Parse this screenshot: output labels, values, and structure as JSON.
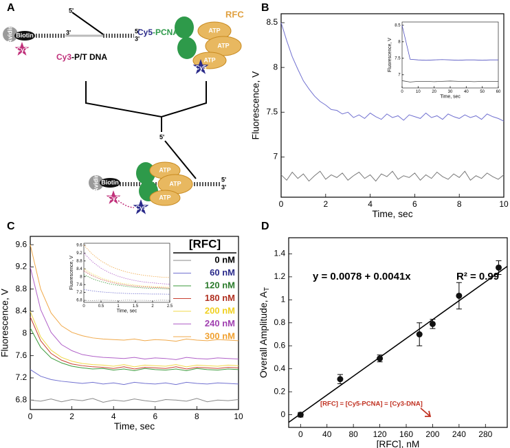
{
  "panels": [
    "A",
    "B",
    "C",
    "D"
  ],
  "diagram": {
    "labels": [
      "Avidin",
      "Biotin",
      "Cy3",
      "3'",
      "5'",
      "5'",
      "3'",
      "Cy3",
      "-P/T DNA",
      "RFC",
      "ATP",
      "ATP",
      "ATP",
      "Cy5",
      "Cy5",
      "-PCNA",
      "Avidin",
      "Biotin",
      "Cy3",
      "ATP",
      "ATP",
      "ATP",
      "Cy5",
      "5'",
      "5'",
      "3'"
    ]
  },
  "chart_data": [
    {
      "type": "line",
      "xlabel": "Time, sec",
      "ylabel": "Fluorescence, V",
      "xlim": [
        0,
        10
      ],
      "ylim": [
        6.55,
        8.6
      ],
      "xticks": [
        0,
        2,
        4,
        6,
        8,
        10
      ],
      "yticks": [
        7,
        7.5,
        8,
        8.5
      ],
      "x": [
        0,
        0.25,
        0.5,
        0.75,
        1,
        1.25,
        1.5,
        1.75,
        2,
        2.25,
        2.5,
        2.75,
        3,
        3.25,
        3.5,
        3.75,
        4,
        4.25,
        4.5,
        4.75,
        5,
        5.25,
        5.5,
        5.75,
        6,
        6.25,
        6.5,
        6.75,
        7,
        7.25,
        7.5,
        7.75,
        8,
        8.25,
        8.5,
        8.75,
        9,
        9.25,
        9.5,
        9.75,
        10
      ],
      "series": [
        {
          "color": "#7070d0",
          "values": [
            8.5,
            8.3,
            8.12,
            7.98,
            7.85,
            7.76,
            7.68,
            7.62,
            7.58,
            7.53,
            7.52,
            7.48,
            7.5,
            7.44,
            7.47,
            7.43,
            7.49,
            7.45,
            7.42,
            7.48,
            7.44,
            7.46,
            7.41,
            7.47,
            7.45,
            7.43,
            7.49,
            7.44,
            7.46,
            7.42,
            7.48,
            7.45,
            7.43,
            7.47,
            7.44,
            7.46,
            7.42,
            7.48,
            7.45,
            7.43,
            7.4
          ]
        },
        {
          "color": "#777777",
          "values": [
            6.8,
            6.74,
            6.83,
            6.76,
            6.81,
            6.73,
            6.79,
            6.84,
            6.75,
            6.8,
            6.77,
            6.82,
            6.74,
            6.79,
            6.83,
            6.76,
            6.8,
            6.73,
            6.81,
            6.78,
            6.84,
            6.75,
            6.79,
            6.77,
            6.82,
            6.74,
            6.8,
            6.76,
            6.83,
            6.78,
            6.75,
            6.81,
            6.77,
            6.84,
            6.74,
            6.79,
            6.76,
            6.82,
            6.78,
            6.75,
            6.8
          ]
        }
      ],
      "inset": {
        "type": "line",
        "xlabel": "Time, sec",
        "ylabel": "Fluorescence, V",
        "xlim": [
          0,
          60
        ],
        "ylim": [
          6.6,
          8.6
        ],
        "xticks": [
          0,
          10,
          20,
          30,
          40,
          50,
          60
        ],
        "yticks": [
          7,
          7.5,
          8,
          8.5
        ],
        "x": [
          0,
          5,
          10,
          15,
          20,
          25,
          30,
          35,
          40,
          45,
          50,
          55,
          60
        ],
        "series": [
          {
            "color": "#5050c0",
            "values": [
              8.5,
              7.47,
              7.45,
              7.44,
              7.45,
              7.46,
              7.45,
              7.44,
              7.45,
              7.45,
              7.44,
              7.45,
              7.45
            ]
          },
          {
            "color": "#444444",
            "values": [
              6.82,
              6.78,
              6.8,
              6.8,
              6.79,
              6.8,
              6.81,
              6.8,
              6.8,
              6.79,
              6.8,
              6.8,
              6.8
            ]
          }
        ]
      }
    },
    {
      "type": "line",
      "xlabel": "Time, sec",
      "ylabel": "Fluorescence, V",
      "legend_title": "[RFC]",
      "xlim": [
        0,
        10
      ],
      "ylim": [
        6.63,
        9.75
      ],
      "xticks": [
        0,
        2,
        4,
        6,
        8,
        10
      ],
      "yticks": [
        6.8,
        7.2,
        7.6,
        8,
        8.4,
        8.8,
        9.2,
        9.6
      ],
      "x": [
        0,
        0.5,
        1,
        1.5,
        2,
        2.5,
        3,
        3.5,
        4,
        4.5,
        5,
        5.5,
        6,
        6.5,
        7,
        7.5,
        8,
        8.5,
        9,
        9.5,
        10
      ],
      "series": [
        {
          "name": "0 nM",
          "color": "#888888",
          "legend_color": "#000000",
          "values": [
            6.8,
            6.78,
            6.82,
            6.77,
            6.81,
            6.79,
            6.83,
            6.76,
            6.8,
            6.78,
            6.82,
            6.79,
            6.77,
            6.81,
            6.8,
            6.78,
            6.83,
            6.77,
            6.8,
            6.79,
            6.81
          ]
        },
        {
          "name": "60 nM",
          "color": "#7070d0",
          "legend_color": "#2a2a8a",
          "values": [
            7.35,
            7.23,
            7.17,
            7.14,
            7.12,
            7.1,
            7.12,
            7.09,
            7.11,
            7.08,
            7.12,
            7.1,
            7.09,
            7.11,
            7.08,
            7.12,
            7.1,
            7.09,
            7.11,
            7.1,
            7.09
          ]
        },
        {
          "name": "120 nM",
          "color": "#3a9a3a",
          "legend_color": "#2a7a2a",
          "values": [
            8.1,
            7.75,
            7.56,
            7.47,
            7.41,
            7.38,
            7.36,
            7.37,
            7.34,
            7.36,
            7.33,
            7.37,
            7.35,
            7.34,
            7.36,
            7.33,
            7.37,
            7.35,
            7.34,
            7.36,
            7.35
          ]
        },
        {
          "name": "180 nM",
          "color": "#c84030",
          "legend_color": "#b03020",
          "values": [
            8.3,
            7.87,
            7.64,
            7.52,
            7.45,
            7.42,
            7.4,
            7.39,
            7.37,
            7.4,
            7.36,
            7.39,
            7.38,
            7.37,
            7.4,
            7.36,
            7.39,
            7.38,
            7.37,
            7.39,
            7.38
          ]
        },
        {
          "name": "200 nM",
          "color": "#f0d848",
          "legend_color": "#f0d020",
          "values": [
            8.4,
            7.94,
            7.7,
            7.57,
            7.5,
            7.46,
            7.44,
            7.43,
            7.41,
            7.44,
            7.4,
            7.43,
            7.42,
            7.41,
            7.44,
            7.4,
            7.43,
            7.42,
            7.41,
            7.43,
            7.42
          ]
        },
        {
          "name": "240 nM",
          "color": "#b060c8",
          "legend_color": "#a040b0",
          "values": [
            9.2,
            8.43,
            8.02,
            7.8,
            7.69,
            7.62,
            7.59,
            7.57,
            7.56,
            7.55,
            7.57,
            7.54,
            7.56,
            7.55,
            7.53,
            7.57,
            7.55,
            7.54,
            7.56,
            7.55,
            7.54
          ]
        },
        {
          "name": "300 nM",
          "color": "#f0a848",
          "legend_color": "#f0a030",
          "values": [
            9.6,
            8.8,
            8.37,
            8.14,
            8.02,
            7.96,
            7.92,
            7.9,
            7.89,
            7.88,
            7.9,
            7.87,
            7.89,
            7.88,
            7.86,
            7.9,
            7.88,
            7.87,
            7.89,
            7.88,
            7.87
          ]
        }
      ],
      "inset": {
        "type": "line",
        "xlabel": "Time, sec",
        "ylabel": "Fluorescence, V",
        "xlim": [
          0,
          2.5
        ],
        "ylim": [
          6.7,
          9.7
        ],
        "xticks": [
          0,
          0.5,
          1,
          1.5,
          2,
          2.5
        ],
        "yticks": [
          6.8,
          7.2,
          7.6,
          8,
          8.4,
          8.8,
          9.2,
          9.6
        ],
        "x": [
          0,
          0.25,
          0.5,
          0.75,
          1,
          1.25,
          1.5,
          1.75,
          2,
          2.25,
          2.5
        ],
        "series": [
          {
            "color": "#888888",
            "values": [
              6.8,
              6.79,
              6.81,
              6.8,
              6.79,
              6.81,
              6.8,
              6.8,
              6.79,
              6.81,
              6.8
            ]
          },
          {
            "color": "#7070d0",
            "values": [
              7.35,
              7.28,
              7.23,
              7.2,
              7.17,
              7.15,
              7.14,
              7.13,
              7.12,
              7.12,
              7.11
            ]
          },
          {
            "color": "#3a9a3a",
            "values": [
              8.1,
              7.9,
              7.75,
              7.64,
              7.57,
              7.51,
              7.46,
              7.43,
              7.41,
              7.4,
              7.38
            ]
          },
          {
            "color": "#c84030",
            "values": [
              8.3,
              8.05,
              7.87,
              7.74,
              7.64,
              7.57,
              7.52,
              7.48,
              7.46,
              7.44,
              7.42
            ]
          },
          {
            "color": "#f0d848",
            "values": [
              8.4,
              8.14,
              7.94,
              7.8,
              7.7,
              7.63,
              7.57,
              7.53,
              7.5,
              7.48,
              7.46
            ]
          },
          {
            "color": "#b060c8",
            "values": [
              9.2,
              8.76,
              8.43,
              8.2,
              8.02,
              7.9,
              7.8,
              7.73,
              7.69,
              7.65,
              7.62
            ]
          },
          {
            "color": "#f0a848",
            "values": [
              9.6,
              9.14,
              8.8,
              8.55,
              8.37,
              8.24,
              8.14,
              8.07,
              8.02,
              7.98,
              7.96
            ]
          }
        ]
      }
    },
    {
      "type": "scatter",
      "xlabel": "[RFC], nM",
      "ylabel": "Overall Amplitude, A",
      "ylabel_subscript": "T",
      "equation": "y = 0.0078 + 0.0041x",
      "r_squared": "R² = 0.99",
      "annotation": "[RFC] = [Cy5-PCNA] = [Cy3-DNA]",
      "xlim": [
        -18,
        313
      ],
      "ylim": [
        -0.11,
        1.54
      ],
      "xticks": [
        0,
        40,
        80,
        120,
        160,
        200,
        240,
        280
      ],
      "yticks": [
        0,
        0.2,
        0.4,
        0.6,
        0.8,
        1,
        1.2,
        1.4
      ],
      "x": [
        0,
        60,
        120,
        180,
        200,
        240,
        300
      ],
      "values": [
        0,
        0.31,
        0.49,
        0.7,
        0.79,
        1.035,
        1.28
      ],
      "errors": [
        0.02,
        0.04,
        0.03,
        0.1,
        0.04,
        0.115,
        0.06
      ],
      "color": "#111111",
      "fit": {
        "intercept": 0.0078,
        "slope": 0.0041
      }
    }
  ]
}
